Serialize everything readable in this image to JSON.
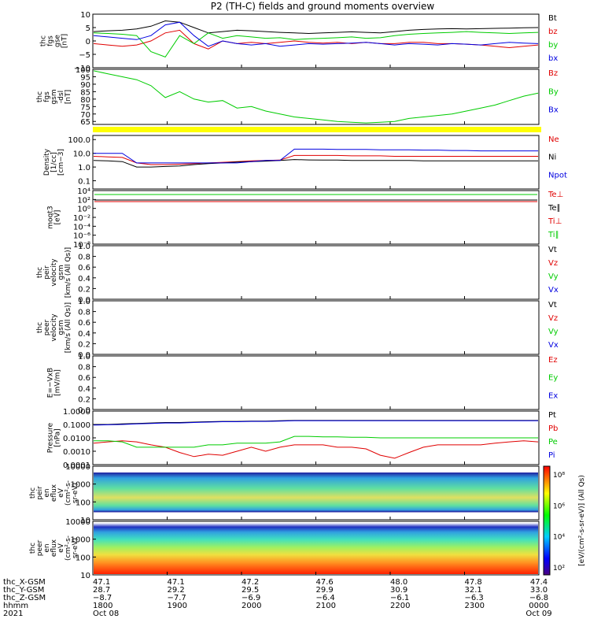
{
  "title": "P2 (TH-C) fields and ground moments overview",
  "colors": {
    "black": "#000000",
    "red": "#e00000",
    "green": "#00cc00",
    "blue": "#0000e0",
    "yellow": "#ffff00"
  },
  "chart_data": [
    {
      "type": "line",
      "panel": "fgs-gse",
      "ylabel_lines": [
        "thc",
        "fgs",
        "gse",
        "[nT]"
      ],
      "yticks": [
        "10",
        "5",
        "0",
        "−5",
        "−10"
      ],
      "ylim": [
        -10,
        10
      ],
      "legend_placement": "right",
      "series": [
        {
          "name": "Bt",
          "color": "black",
          "values": [
            3.5,
            3.8,
            4,
            4.5,
            5.5,
            7.5,
            7,
            5,
            3,
            3.5,
            4,
            3.8,
            3.5,
            3.2,
            3,
            2.8,
            3,
            3.2,
            3.4,
            3.2,
            3,
            3.5,
            4,
            4.3,
            4.5,
            4.6,
            4.5,
            4.6,
            4.7,
            4.8,
            4.9,
            5
          ]
        },
        {
          "name": "bz",
          "color": "red",
          "values": [
            -1,
            -1.5,
            -2,
            -1.5,
            0,
            3,
            4,
            -1,
            -3,
            0,
            -1,
            -0.5,
            -1,
            -0.5,
            0,
            -0.5,
            -0.8,
            -0.5,
            -1,
            -0.5,
            -1,
            -1,
            -0.5,
            -0.5,
            -1,
            -1,
            -1.2,
            -1.5,
            -2,
            -2.5,
            -2,
            -1.5
          ]
        },
        {
          "name": "by",
          "color": "green",
          "values": [
            3,
            2.8,
            2.5,
            2,
            -4,
            -6,
            2,
            -1,
            3,
            1,
            2,
            1.5,
            1,
            1.2,
            0.5,
            0.8,
            1,
            1.2,
            1.5,
            1,
            1.2,
            2,
            2.5,
            2.8,
            3,
            3.2,
            3.5,
            3.2,
            3,
            2.8,
            3,
            3.2
          ]
        },
        {
          "name": "bx",
          "color": "blue",
          "values": [
            2,
            1.5,
            1,
            0.5,
            2,
            6,
            7,
            2,
            -2,
            0,
            -1,
            -1.5,
            -1,
            -2,
            -1.5,
            -1,
            -1.2,
            -1,
            -0.8,
            -0.5,
            -1,
            -1.5,
            -1,
            -1.2,
            -1.5,
            -1,
            -1.2,
            -1.5,
            -1,
            -0.5,
            -0.8,
            -1
          ]
        }
      ]
    },
    {
      "type": "line",
      "panel": "fgs-gsm",
      "ylabel_lines": [
        "thc",
        "fgs",
        "gsm",
        "-dsl",
        "[nT]"
      ],
      "yticks": [
        "100",
        "95",
        "90",
        "85",
        "80",
        "75",
        "70",
        "65"
      ],
      "ylim": [
        63,
        100
      ],
      "legend": [
        "Bz",
        "By",
        "Bx"
      ],
      "legend_colors": [
        "red",
        "green",
        "blue"
      ],
      "series": [
        {
          "name": "By",
          "color": "green",
          "values": [
            99,
            97,
            95,
            93,
            89,
            81,
            85,
            80,
            78,
            79,
            74,
            75,
            72,
            70,
            68,
            67,
            66,
            65,
            64.5,
            64,
            64.5,
            65,
            67,
            68,
            69,
            70,
            72,
            74,
            76,
            79,
            82,
            84
          ]
        }
      ]
    },
    {
      "type": "line",
      "panel": "density",
      "ylabel_lines": [
        "Density",
        "[1/cc]",
        "[cm−3]"
      ],
      "yticks": [
        "100.0",
        "10.0",
        "1.0",
        "0.1"
      ],
      "log_scale": true,
      "legend": [
        "Ne",
        "Ni",
        "Npot"
      ],
      "legend_colors": [
        "red",
        "black",
        "blue"
      ],
      "series": [
        {
          "name": "Ne",
          "color": "red",
          "values": [
            6,
            5.5,
            5,
            2,
            1.5,
            1.5,
            1.6,
            1.8,
            2,
            2.2,
            2.5,
            2.8,
            3,
            3.2,
            7,
            7,
            7,
            7,
            6.5,
            6.5,
            6.5,
            6,
            6,
            6,
            6,
            6,
            6,
            6,
            6,
            6,
            6,
            6
          ]
        },
        {
          "name": "Ni",
          "color": "black",
          "values": [
            3,
            2.8,
            2.5,
            1,
            1,
            1.1,
            1.2,
            1.5,
            1.8,
            2,
            2.3,
            2.5,
            2.7,
            3,
            3.5,
            3.3,
            3.2,
            3.2,
            3,
            3,
            3,
            3,
            3,
            2.8,
            2.8,
            2.8,
            2.8,
            2.8,
            2.8,
            2.8,
            2.8,
            2.8
          ]
        },
        {
          "name": "Npot",
          "color": "blue",
          "values": [
            10,
            10,
            10,
            2,
            2,
            2,
            2,
            2,
            2,
            2,
            2,
            2.5,
            3,
            3,
            20,
            20,
            20,
            19,
            19,
            19,
            18,
            18,
            18,
            17,
            17,
            16,
            16,
            15,
            15,
            15,
            15,
            15
          ]
        }
      ]
    },
    {
      "type": "line",
      "panel": "temperature",
      "ylabel_lines": [
        "moqt3",
        "[eV]"
      ],
      "yticks": [
        "10⁴",
        "10²",
        "10⁰",
        "10⁻²",
        "10⁻⁴",
        "10⁻⁶",
        "10⁻⁸"
      ],
      "legend": [
        "Te⊥",
        "Te∥",
        "Ti⊥",
        "Ti∥"
      ],
      "legend_colors": [
        "red",
        "black",
        "red",
        "green"
      ]
    },
    {
      "type": "line",
      "panel": "peir-velocity",
      "ylabel_lines": [
        "thc",
        "peir",
        "velocity",
        "gsm",
        "[km/s (All Qs)]"
      ],
      "yticks": [
        "1.0",
        "0.8",
        "0.6",
        "0.4",
        "0.2",
        "0.0"
      ],
      "legend": [
        "Vt",
        "Vz",
        "Vy",
        "Vx"
      ],
      "legend_colors": [
        "black",
        "red",
        "green",
        "blue"
      ]
    },
    {
      "type": "line",
      "panel": "peer-velocity",
      "ylabel_lines": [
        "thc",
        "peer",
        "velocity",
        "gsm",
        "[km/s (All Qs)]"
      ],
      "yticks": [
        "1.0",
        "0.8",
        "0.6",
        "0.4",
        "0.2",
        "0.0"
      ],
      "legend": [
        "Vt",
        "Vz",
        "Vy",
        "Vx"
      ],
      "legend_colors": [
        "black",
        "red",
        "green",
        "blue"
      ]
    },
    {
      "type": "line",
      "panel": "efield",
      "ylabel_lines": [
        "E=−VxB",
        "[mV/m]"
      ],
      "yticks": [
        "1.0",
        "0.8",
        "0.6",
        "0.4",
        "0.2",
        "0.0"
      ],
      "legend": [
        "Ez",
        "Ey",
        "Ex"
      ],
      "legend_colors": [
        "red",
        "green",
        "blue"
      ]
    },
    {
      "type": "line",
      "panel": "pressure",
      "ylabel_lines": [
        "Pressure",
        "[nPa]"
      ],
      "yticks": [
        "1.0000",
        "0.1000",
        "0.0100",
        "0.0010",
        "0.0001"
      ],
      "log_scale": true,
      "legend": [
        "Pt",
        "Pb",
        "Pe",
        "Pi"
      ],
      "legend_colors": [
        "black",
        "red",
        "green",
        "blue"
      ],
      "series": [
        {
          "name": "Pt",
          "color": "black",
          "values": [
            0.1,
            0.1,
            0.11,
            0.12,
            0.13,
            0.14,
            0.14,
            0.15,
            0.16,
            0.17,
            0.17,
            0.18,
            0.18,
            0.19,
            0.2,
            0.2,
            0.2,
            0.2,
            0.2,
            0.2,
            0.2,
            0.2,
            0.2,
            0.2,
            0.2,
            0.2,
            0.2,
            0.2,
            0.2,
            0.2,
            0.2,
            0.2
          ]
        },
        {
          "name": "Pb",
          "color": "red",
          "values": [
            0.004,
            0.005,
            0.006,
            0.005,
            0.003,
            0.002,
            0.0008,
            0.0004,
            0.0006,
            0.0005,
            0.001,
            0.002,
            0.001,
            0.002,
            0.003,
            0.003,
            0.003,
            0.002,
            0.002,
            0.0015,
            0.0005,
            0.0003,
            0.0008,
            0.002,
            0.003,
            0.003,
            0.003,
            0.003,
            0.004,
            0.005,
            0.006,
            0.005
          ]
        },
        {
          "name": "Pe",
          "color": "green",
          "values": [
            0.006,
            0.006,
            0.005,
            0.002,
            0.002,
            0.002,
            0.002,
            0.002,
            0.003,
            0.003,
            0.004,
            0.004,
            0.004,
            0.005,
            0.013,
            0.013,
            0.012,
            0.012,
            0.011,
            0.011,
            0.01,
            0.01,
            0.01,
            0.01,
            0.01,
            0.01,
            0.01,
            0.01,
            0.01,
            0.01,
            0.01,
            0.01
          ]
        },
        {
          "name": "Pi",
          "color": "blue",
          "values": [
            0.09,
            0.095,
            0.1,
            0.11,
            0.12,
            0.13,
            0.13,
            0.14,
            0.15,
            0.16,
            0.16,
            0.17,
            0.17,
            0.18,
            0.19,
            0.19,
            0.19,
            0.19,
            0.19,
            0.19,
            0.19,
            0.19,
            0.19,
            0.19,
            0.19,
            0.19,
            0.19,
            0.19,
            0.19,
            0.19,
            0.19,
            0.19
          ]
        }
      ]
    },
    {
      "type": "heatmap",
      "panel": "peir-eflux",
      "ylabel_lines": [
        "thc",
        "peir",
        "en",
        "eflux",
        "eV",
        "(cm²-s-",
        "sr-eV)"
      ],
      "yticks": [
        "10000",
        "1000",
        "100",
        "10"
      ],
      "log_scale": true
    },
    {
      "type": "heatmap",
      "panel": "peer-eflux",
      "ylabel_lines": [
        "thc",
        "peer",
        "en",
        "eflux",
        "eV",
        "(cm²-s-",
        "sr-eV)"
      ],
      "yticks": [
        "10000",
        "1000",
        "100",
        "10"
      ],
      "log_scale": true,
      "colorbar_label": "[eV/(cm²-s-sr-eV)] (All Qs)",
      "colorbar_ticks": [
        "10⁸",
        "10⁶",
        "10⁴",
        "10²"
      ]
    }
  ],
  "xaxis": {
    "row_labels": [
      "thc_X-GSM",
      "thc_Y-GSM",
      "thc_Z-GSM",
      "hhmm",
      "2021"
    ],
    "columns": [
      {
        "x": "47.1",
        "y": "28.7",
        "z": "−8.7",
        "hhmm": "1800",
        "date": "Oct 08"
      },
      {
        "x": "47.1",
        "y": "29.2",
        "z": "−7.7",
        "hhmm": "1900",
        "date": ""
      },
      {
        "x": "47.2",
        "y": "29.5",
        "z": "−6.9",
        "hhmm": "2000",
        "date": ""
      },
      {
        "x": "47.6",
        "y": "29.9",
        "z": "−6.4",
        "hhmm": "2100",
        "date": ""
      },
      {
        "x": "48.0",
        "y": "30.9",
        "z": "−6.1",
        "hhmm": "2200",
        "date": ""
      },
      {
        "x": "47.8",
        "y": "32.1",
        "z": "−6.3",
        "hhmm": "2300",
        "date": ""
      },
      {
        "x": "47.4",
        "y": "33.0",
        "z": "−6.8",
        "hhmm": "0000",
        "date": "Oct 09"
      }
    ]
  }
}
